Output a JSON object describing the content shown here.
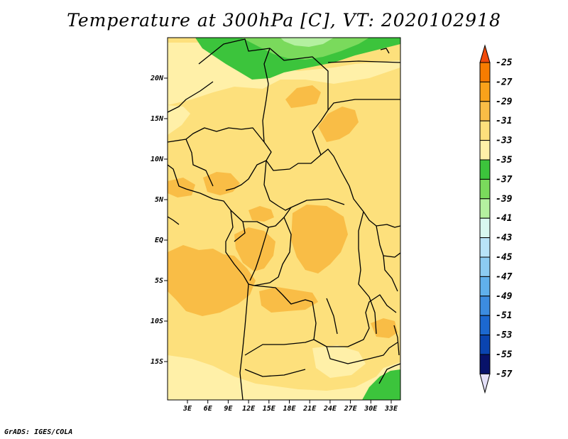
{
  "title": "Temperature at 300hPa [C], VT: 2020102918",
  "footer": "GrADS: IGES/COLA",
  "map": {
    "lat_labels": [
      "20N",
      "15N",
      "10N",
      "5N",
      "EQ",
      "5S",
      "10S",
      "15S"
    ],
    "lon_labels": [
      "3E",
      "6E",
      "9E",
      "12E",
      "15E",
      "18E",
      "21E",
      "24E",
      "27E",
      "30E",
      "33E"
    ],
    "field_colors": {
      "background": "#fde07c",
      "warm_patch": "#f9bd46",
      "cool_patch": "#fff0a8",
      "green_dark": "#3cc43c",
      "green_mid": "#7ada5c",
      "green_light": "#b4f0a0"
    }
  },
  "colorbar": {
    "labels": [
      "-25",
      "-27",
      "-29",
      "-31",
      "-33",
      "-35",
      "-37",
      "-39",
      "-41",
      "-43",
      "-45",
      "-47",
      "-49",
      "-51",
      "-53",
      "-55",
      "-57"
    ],
    "colors": [
      "#f04a0a",
      "#f77c00",
      "#f9a21a",
      "#f9bd46",
      "#fde07c",
      "#fff0a8",
      "#3cc43c",
      "#7ada5c",
      "#b4f0a0",
      "#d8f8f0",
      "#b8e4f8",
      "#8cccf2",
      "#60b0ec",
      "#3c8ce0",
      "#1c68d0",
      "#0a44b0",
      "#08126a"
    ],
    "top_arrow_color": "#f04a0a",
    "bottom_arrow_color": "#e4e0f8"
  }
}
